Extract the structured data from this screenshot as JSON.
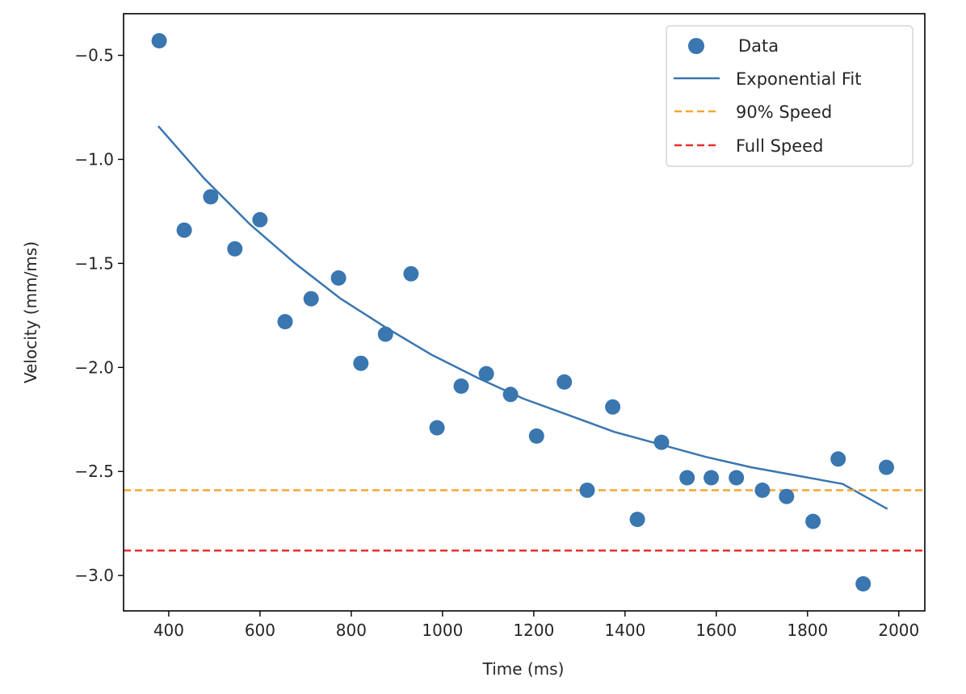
{
  "chart_data": {
    "type": "scatter",
    "title": "",
    "xlabel": "Time (ms)",
    "ylabel": "Velocity (mm/ms)",
    "xlim": [
      301,
      2057
    ],
    "ylim": [
      -3.17,
      -0.3
    ],
    "xticks": [
      400,
      600,
      800,
      1000,
      1200,
      1400,
      1600,
      1800,
      2000
    ],
    "xtick_labels": [
      "400",
      "600",
      "800",
      "1000",
      "1200",
      "1400",
      "1600",
      "1800",
      "2000"
    ],
    "yticks": [
      -0.5,
      -1.0,
      -1.5,
      -2.0,
      -2.5,
      -3.0
    ],
    "ytick_labels": [
      "−0.5",
      "−1.0",
      "−1.5",
      "−2.0",
      "−2.5",
      "−3.0"
    ],
    "grid": false,
    "legend_position": "top-right",
    "series": [
      {
        "name": "Data",
        "kind": "scatter",
        "color": "#3a76b0",
        "x": [
          379,
          434,
          492,
          545,
          600,
          655,
          712,
          772,
          821,
          875,
          931,
          988,
          1041,
          1096,
          1149,
          1206,
          1267,
          1317,
          1373,
          1427,
          1480,
          1536,
          1589,
          1644,
          1701,
          1754,
          1812,
          1867,
          1922,
          1973
        ],
        "y": [
          -0.43,
          -1.34,
          -1.18,
          -1.43,
          -1.29,
          -1.78,
          -1.67,
          -1.57,
          -1.98,
          -1.84,
          -1.55,
          -2.29,
          -2.09,
          -2.03,
          -2.13,
          -2.33,
          -2.07,
          -2.59,
          -2.19,
          -2.73,
          -2.36,
          -2.53,
          -2.53,
          -2.53,
          -2.59,
          -2.62,
          -2.74,
          -2.44,
          -3.04,
          -2.48
        ]
      },
      {
        "name": "Exponential Fit",
        "kind": "line",
        "color": "#3a76b0",
        "x": [
          377,
          477,
          577,
          677,
          777,
          877,
          977,
          1077,
          1177,
          1277,
          1377,
          1477,
          1577,
          1677,
          1777,
          1877,
          1975
        ],
        "y": [
          -0.84,
          -1.09,
          -1.31,
          -1.5,
          -1.67,
          -1.81,
          -1.94,
          -2.05,
          -2.15,
          -2.23,
          -2.31,
          -2.37,
          -2.43,
          -2.48,
          -2.52,
          -2.56,
          -2.68
        ]
      },
      {
        "name": "90% Speed",
        "kind": "hline",
        "color": "#f4a633",
        "dash": true,
        "y": -2.59
      },
      {
        "name": "Full Speed",
        "kind": "hline",
        "color": "#e8302a",
        "dash": true,
        "y": -2.88
      }
    ]
  }
}
